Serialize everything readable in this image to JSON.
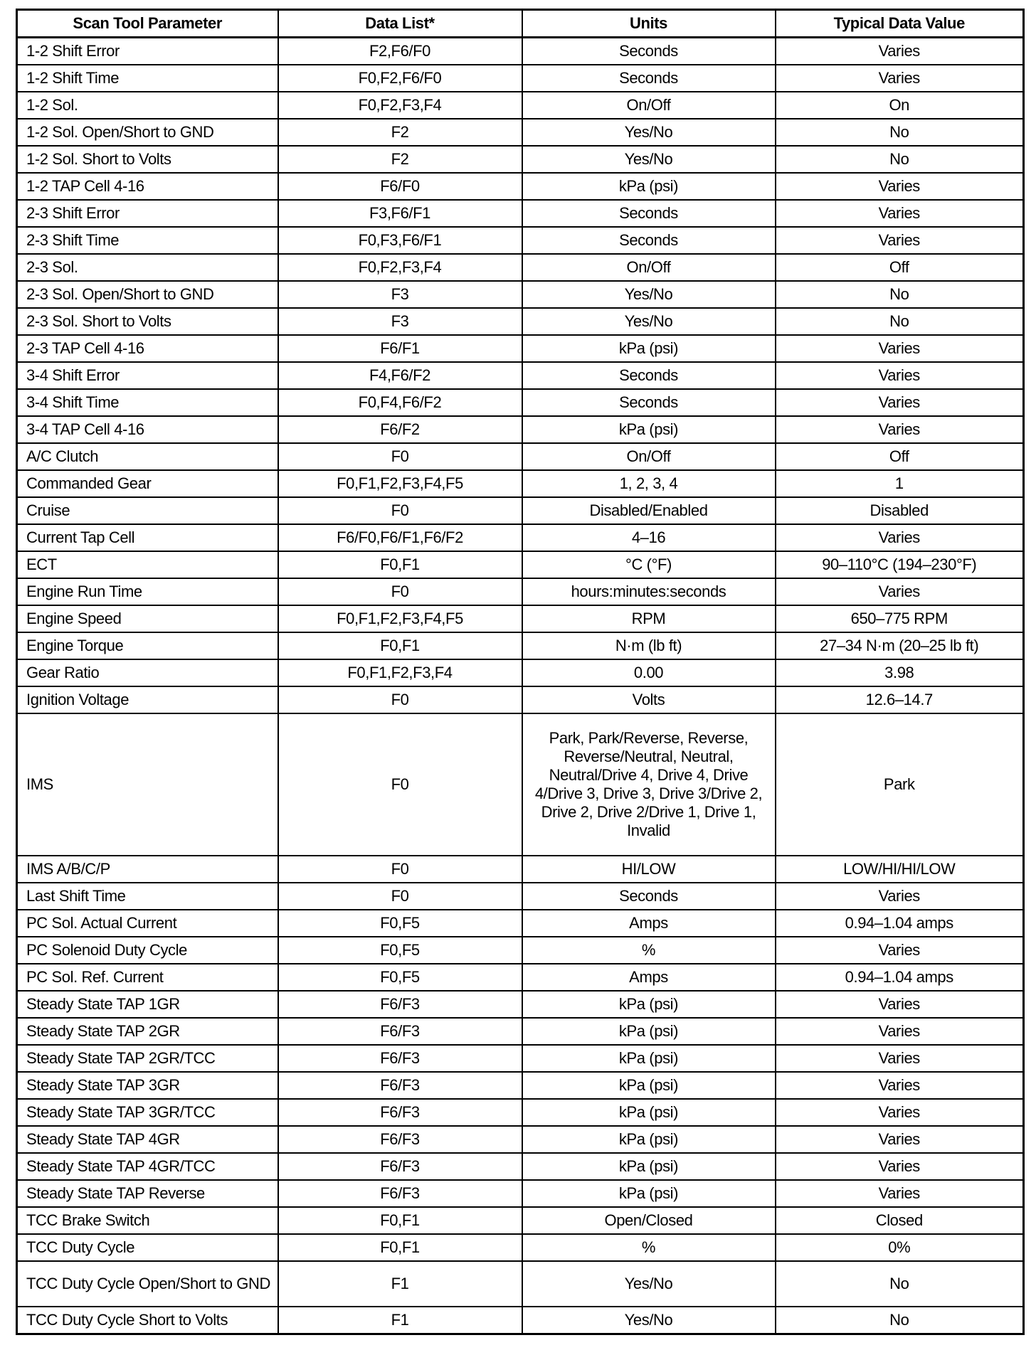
{
  "table": {
    "headers": [
      "Scan Tool Parameter",
      "Data List*",
      "Units",
      "Typical Data Value"
    ],
    "rows": [
      [
        "1-2 Shift Error",
        "F2,F6/F0",
        "Seconds",
        "Varies"
      ],
      [
        "1-2 Shift Time",
        "F0,F2,F6/F0",
        "Seconds",
        "Varies"
      ],
      [
        "1-2 Sol.",
        "F0,F2,F3,F4",
        "On/Off",
        "On"
      ],
      [
        "1-2 Sol. Open/Short to GND",
        "F2",
        "Yes/No",
        "No"
      ],
      [
        "1-2 Sol. Short to Volts",
        "F2",
        "Yes/No",
        "No"
      ],
      [
        "1-2 TAP Cell 4-16",
        "F6/F0",
        "kPa (psi)",
        "Varies"
      ],
      [
        "2-3 Shift Error",
        "F3,F6/F1",
        "Seconds",
        "Varies"
      ],
      [
        "2-3 Shift Time",
        "F0,F3,F6/F1",
        "Seconds",
        "Varies"
      ],
      [
        "2-3 Sol.",
        "F0,F2,F3,F4",
        "On/Off",
        "Off"
      ],
      [
        "2-3 Sol. Open/Short to GND",
        "F3",
        "Yes/No",
        "No"
      ],
      [
        "2-3 Sol. Short to Volts",
        "F3",
        "Yes/No",
        "No"
      ],
      [
        "2-3 TAP Cell 4-16",
        "F6/F1",
        "kPa (psi)",
        "Varies"
      ],
      [
        "3-4 Shift Error",
        "F4,F6/F2",
        "Seconds",
        "Varies"
      ],
      [
        "3-4 Shift Time",
        "F0,F4,F6/F2",
        "Seconds",
        "Varies"
      ],
      [
        "3-4 TAP Cell 4-16",
        "F6/F2",
        "kPa (psi)",
        "Varies"
      ],
      [
        "A/C Clutch",
        "F0",
        "On/Off",
        "Off"
      ],
      [
        "Commanded Gear",
        "F0,F1,F2,F3,F4,F5",
        "1, 2, 3, 4",
        "1"
      ],
      [
        "Cruise",
        "F0",
        "Disabled/Enabled",
        "Disabled"
      ],
      [
        "Current Tap Cell",
        "F6/F0,F6/F1,F6/F2",
        "4–16",
        "Varies"
      ],
      [
        "ECT",
        "F0,F1",
        "°C (°F)",
        "90–110°C (194–230°F)"
      ],
      [
        "Engine Run Time",
        "F0",
        "hours:minutes:seconds",
        "Varies"
      ],
      [
        "Engine Speed",
        "F0,F1,F2,F3,F4,F5",
        "RPM",
        "650–775 RPM"
      ],
      [
        "Engine Torque",
        "F0,F1",
        "N·m (lb ft)",
        "27–34 N·m (20–25 lb ft)"
      ],
      [
        "Gear Ratio",
        "F0,F1,F2,F3,F4",
        "0.00",
        "3.98"
      ],
      [
        "Ignition Voltage",
        "F0",
        "Volts",
        "12.6–14.7"
      ],
      [
        "IMS",
        "F0",
        "Park, Park/Reverse, Reverse, Reverse/Neutral, Neutral, Neutral/Drive 4, Drive 4, Drive 4/Drive 3, Drive 3, Drive 3/Drive 2, Drive 2, Drive 2/Drive 1, Drive 1, Invalid",
        "Park"
      ],
      [
        "IMS A/B/C/P",
        "F0",
        "HI/LOW",
        "LOW/HI/HI/LOW"
      ],
      [
        "Last Shift Time",
        "F0",
        "Seconds",
        "Varies"
      ],
      [
        "PC Sol. Actual Current",
        "F0,F5",
        "Amps",
        "0.94–1.04 amps"
      ],
      [
        "PC Solenoid Duty Cycle",
        "F0,F5",
        "%",
        "Varies"
      ],
      [
        "PC Sol. Ref. Current",
        "F0,F5",
        "Amps",
        "0.94–1.04 amps"
      ],
      [
        "Steady State TAP 1GR",
        "F6/F3",
        "kPa (psi)",
        "Varies"
      ],
      [
        "Steady State TAP 2GR",
        "F6/F3",
        "kPa (psi)",
        "Varies"
      ],
      [
        "Steady State TAP 2GR/TCC",
        "F6/F3",
        "kPa (psi)",
        "Varies"
      ],
      [
        "Steady State TAP 3GR",
        "F6/F3",
        "kPa (psi)",
        "Varies"
      ],
      [
        "Steady State TAP 3GR/TCC",
        "F6/F3",
        "kPa (psi)",
        "Varies"
      ],
      [
        "Steady State TAP 4GR",
        "F6/F3",
        "kPa (psi)",
        "Varies"
      ],
      [
        "Steady State TAP 4GR/TCC",
        "F6/F3",
        "kPa (psi)",
        "Varies"
      ],
      [
        "Steady State TAP Reverse",
        "F6/F3",
        "kPa (psi)",
        "Varies"
      ],
      [
        "TCC Brake Switch",
        "F0,F1",
        "Open/Closed",
        "Closed"
      ],
      [
        "TCC Duty Cycle",
        "F0,F1",
        "%",
        "0%"
      ],
      [
        "TCC Duty Cycle Open/Short to GND",
        "F1",
        "Yes/No",
        "No"
      ],
      [
        "TCC Duty Cycle Short to Volts",
        "F1",
        "Yes/No",
        "No"
      ]
    ]
  }
}
